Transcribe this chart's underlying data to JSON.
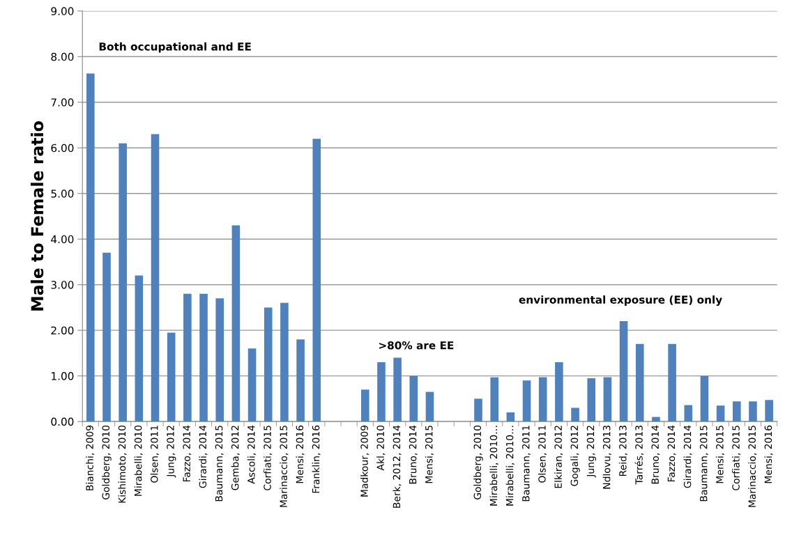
{
  "chart_data": {
    "type": "bar",
    "ylabel": "Male to Female ratio",
    "categories": [
      "Bianchi, 2009",
      "Goldberg, 2010",
      "Kishimoto, 2010",
      "Mirabelli, 2010",
      "Olsen, 2011",
      "Jung, 2012",
      "Fazzo, 2014",
      "Girardi, 2014",
      "Baumann, 2015",
      "Gemba, 2012",
      "Ascoli, 2014",
      "Corfiati, 2015",
      "Marinaccio, 2015",
      "Mensi, 2016",
      "Franklin, 2016",
      null,
      null,
      "Madkour, 2009",
      "Akl, 2010",
      "Berk, 2012, 2014",
      "Bruno, 2014",
      "Mensi, 2015",
      null,
      null,
      "Goldberg, 2010",
      "Mirabelli, 2010…",
      "Mirabelli, 2010…",
      "Baumann, 2011",
      "Olsen, 2011",
      "Elkiran, 2012",
      "Gogali, 2012",
      "Jung, 2012",
      "Ndlovu, 2013",
      "Reid, 2013",
      "Tarrés, 2013",
      "Bruno, 2014",
      "Fazzo, 2014",
      "Girardi, 2014",
      "Baumann, 2015",
      "Mensi, 2015",
      "Corfiati, 2015",
      "Marinaccio, 2015",
      "Mensi, 2016"
    ],
    "values": [
      7.63,
      3.7,
      6.1,
      3.2,
      6.3,
      1.95,
      2.8,
      2.8,
      2.7,
      4.3,
      1.6,
      2.5,
      2.6,
      1.8,
      6.2,
      null,
      null,
      0.7,
      1.3,
      1.4,
      1.0,
      0.65,
      null,
      null,
      0.5,
      0.97,
      0.2,
      0.9,
      0.97,
      1.3,
      0.3,
      0.95,
      0.97,
      2.2,
      1.7,
      0.1,
      1.7,
      0.36,
      1.0,
      0.35,
      0.44,
      0.44,
      0.47
    ],
    "color": "#4f81bd",
    "ylim": [
      0,
      9
    ],
    "yticks": [
      {
        "value": 0,
        "label": "0.00"
      },
      {
        "value": 1,
        "label": "1.00"
      },
      {
        "value": 2,
        "label": "2.00"
      },
      {
        "value": 3,
        "label": "3.00"
      },
      {
        "value": 4,
        "label": "4.00"
      },
      {
        "value": 5,
        "label": "5.00"
      },
      {
        "value": 6,
        "label": "6.00"
      },
      {
        "value": 7,
        "label": "7.00"
      },
      {
        "value": 8,
        "label": "8.00"
      },
      {
        "value": 9,
        "label": "9.00"
      }
    ],
    "grid": "y",
    "annotations": [
      "Both occupational and EE",
      ">80% are EE",
      "environmental exposure (EE) only"
    ]
  }
}
